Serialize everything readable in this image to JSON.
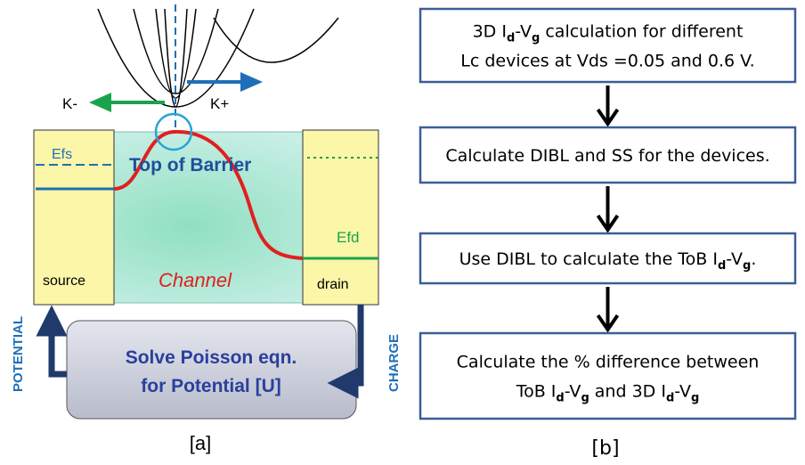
{
  "panel_a": {
    "label": "[a]",
    "k_minus": "K-",
    "k_plus": "K+",
    "efs": "Efs",
    "top_of_barrier": "Top of Barrier",
    "efd": "Efd",
    "source": "source",
    "channel": "Channel",
    "drain": "drain",
    "potential": "POTENTIAL",
    "charge": "CHARGE",
    "poisson": [
      "Solve Poisson eqn.",
      "for Potential [U]"
    ]
  },
  "panel_b": {
    "label": "[b]",
    "steps": [
      {
        "lines": [
          [
            "3D I",
            "d",
            "-V",
            "g",
            " calculation for different"
          ],
          [
            "Lc devices at Vds =0.05 and 0.6 V."
          ]
        ]
      },
      {
        "lines": [
          [
            "Calculate DIBL and SS for the devices."
          ]
        ]
      },
      {
        "lines": [
          [
            "Use DIBL to calculate the ToB I",
            "d",
            "-V",
            "g",
            "."
          ]
        ]
      },
      {
        "lines": [
          [
            "Calculate the % difference between"
          ],
          [
            "ToB I",
            "d",
            "-V",
            "g",
            "  and 3D I",
            "d",
            "-V",
            "g"
          ]
        ]
      }
    ]
  }
}
